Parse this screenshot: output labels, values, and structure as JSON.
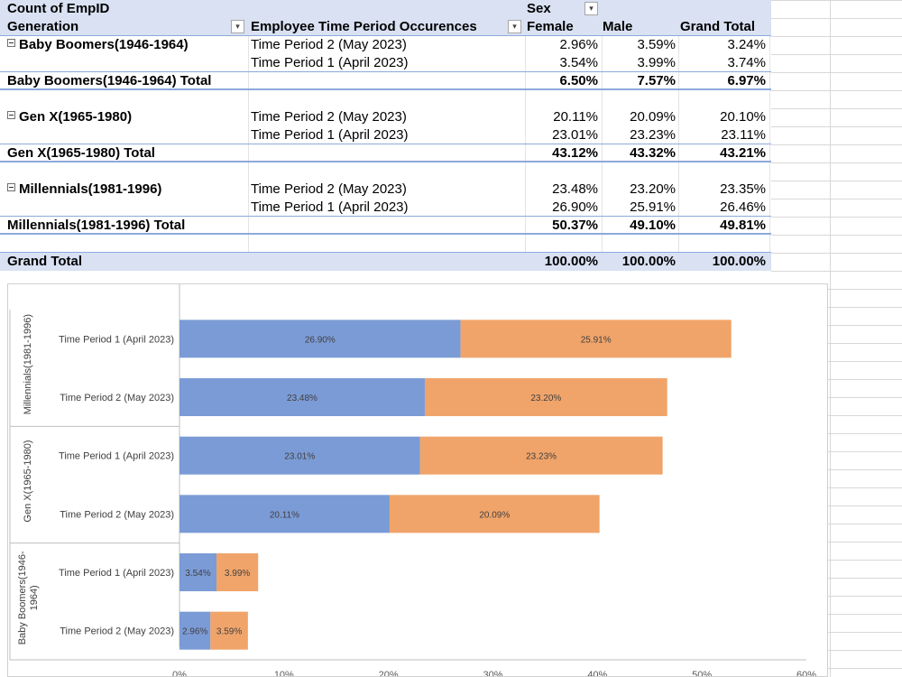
{
  "pivot": {
    "value_field": "Count of EmpID",
    "column_field": "Sex",
    "headers": {
      "generation": "Generation",
      "period": "Employee Time Period Occurences",
      "female": "Female",
      "male": "Male",
      "grand": "Grand Total"
    },
    "groups": [
      {
        "name": "Baby Boomers(1946-1964)",
        "total_label": "Baby Boomers(1946-1964) Total",
        "rows": [
          {
            "period": "Time Period 2 (May 2023)",
            "female": "2.96%",
            "male": "3.59%",
            "grand": "3.24%"
          },
          {
            "period": "Time Period 1 (April 2023)",
            "female": "3.54%",
            "male": "3.99%",
            "grand": "3.74%"
          }
        ],
        "total": {
          "female": "6.50%",
          "male": "7.57%",
          "grand": "6.97%"
        }
      },
      {
        "name": "Gen X(1965-1980)",
        "total_label": "Gen X(1965-1980) Total",
        "rows": [
          {
            "period": "Time Period 2 (May 2023)",
            "female": "20.11%",
            "male": "20.09%",
            "grand": "20.10%"
          },
          {
            "period": "Time Period 1 (April 2023)",
            "female": "23.01%",
            "male": "23.23%",
            "grand": "23.11%"
          }
        ],
        "total": {
          "female": "43.12%",
          "male": "43.32%",
          "grand": "43.21%"
        }
      },
      {
        "name": "Millennials(1981-1996)",
        "total_label": "Millennials(1981-1996) Total",
        "rows": [
          {
            "period": "Time Period 2 (May 2023)",
            "female": "23.48%",
            "male": "23.20%",
            "grand": "23.35%"
          },
          {
            "period": "Time Period 1 (April 2023)",
            "female": "26.90%",
            "male": "25.91%",
            "grand": "26.46%"
          }
        ],
        "total": {
          "female": "50.37%",
          "male": "49.10%",
          "grand": "49.81%"
        }
      }
    ],
    "grand_total": {
      "label": "Grand Total",
      "female": "100.00%",
      "male": "100.00%",
      "grand": "100.00%"
    }
  },
  "chart_data": {
    "type": "bar",
    "orientation": "horizontal",
    "stacked": true,
    "groups": [
      {
        "name": "Millennials(1981-1996)",
        "categories": [
          "Time Period 1 (April 2023)",
          "Time Period 2 (May 2023)"
        ]
      },
      {
        "name": "Gen X(1965-1980)",
        "categories": [
          "Time Period 1 (April 2023)",
          "Time Period 2 (May 2023)"
        ]
      },
      {
        "name": "Baby Boomers(1946-1964)",
        "categories": [
          "Time Period 1 (April 2023)",
          "Time Period 2 (May 2023)"
        ]
      }
    ],
    "series": [
      {
        "name": "Female",
        "color": "#7b9bd6",
        "values": [
          26.9,
          23.48,
          23.01,
          20.11,
          3.54,
          2.96
        ]
      },
      {
        "name": "Male",
        "color": "#f0a46a",
        "values": [
          25.91,
          23.2,
          23.23,
          20.09,
          3.99,
          3.59
        ]
      }
    ],
    "xlim": [
      0,
      60
    ],
    "xticks": [
      "0%",
      "10%",
      "20%",
      "30%",
      "40%",
      "50%",
      "60%"
    ],
    "grid": false,
    "legend": "none"
  }
}
